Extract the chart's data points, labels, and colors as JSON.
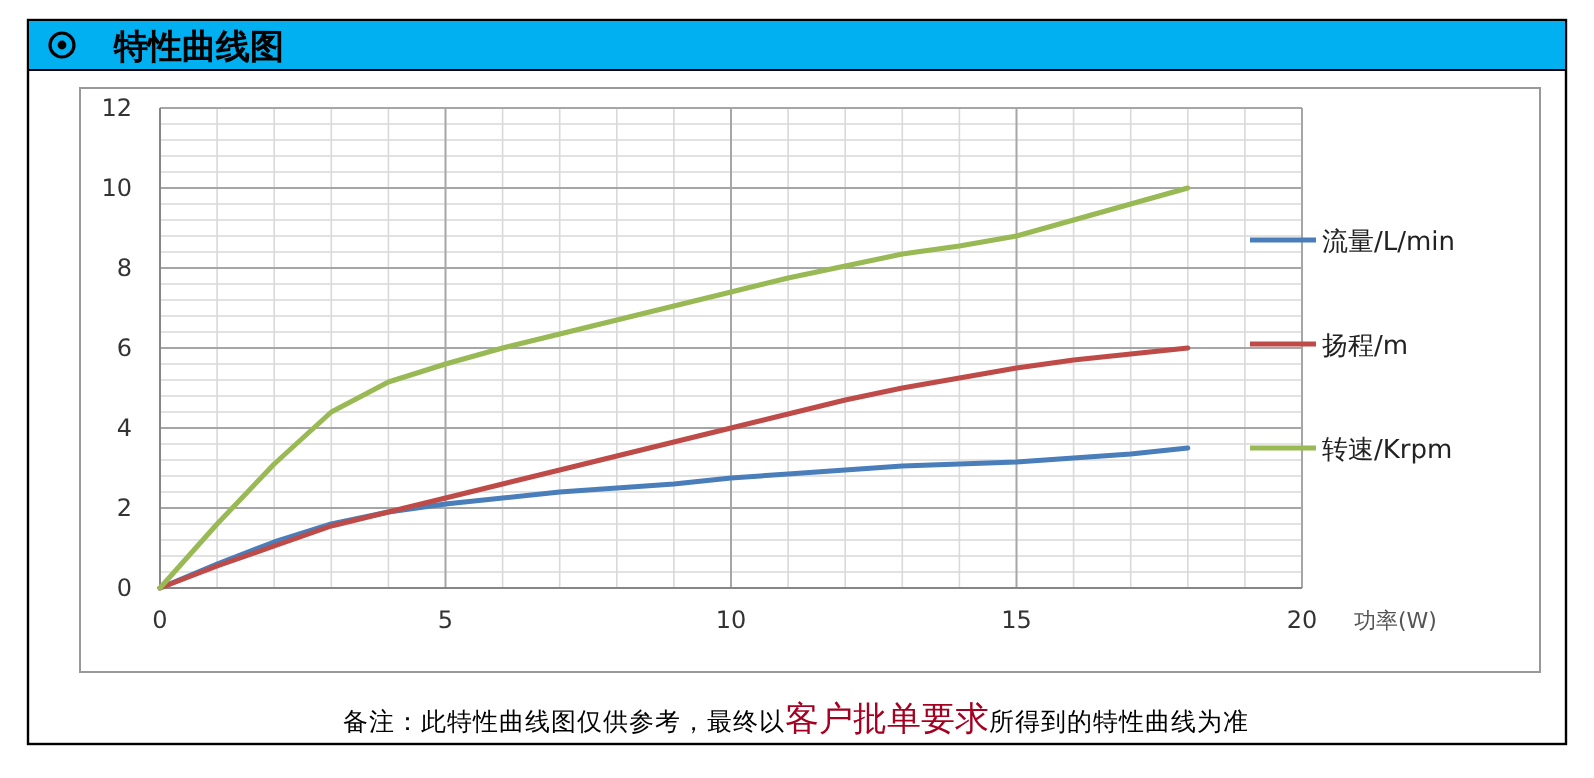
{
  "chart_data": {
    "type": "line",
    "title": "特性曲线图",
    "xlabel": "功率(W)",
    "x": [
      0,
      1,
      2,
      3,
      4,
      5,
      6,
      7,
      8,
      9,
      10,
      11,
      12,
      13,
      14,
      15,
      16,
      17,
      18
    ],
    "series": [
      {
        "name": "流量/L/min",
        "color": "#4a7ebb",
        "values": [
          0,
          0.6,
          1.15,
          1.6,
          1.9,
          2.1,
          2.25,
          2.4,
          2.5,
          2.6,
          2.75,
          2.85,
          2.95,
          3.05,
          3.1,
          3.15,
          3.25,
          3.35,
          3.5
        ]
      },
      {
        "name": "扬程/m",
        "color": "#be4b48",
        "values": [
          0,
          0.55,
          1.05,
          1.55,
          1.9,
          2.25,
          2.6,
          2.95,
          3.3,
          3.65,
          4.0,
          4.35,
          4.7,
          5.0,
          5.25,
          5.5,
          5.7,
          5.85,
          6.0
        ]
      },
      {
        "name": "转速/Krpm",
        "color": "#98b954",
        "values": [
          0,
          1.6,
          3.1,
          4.4,
          5.15,
          5.6,
          6.0,
          6.35,
          6.7,
          7.05,
          7.4,
          7.75,
          8.05,
          8.35,
          8.55,
          8.8,
          9.2,
          9.6,
          10.0
        ]
      }
    ],
    "xlim": [
      0,
      20
    ],
    "xticks": [
      0,
      5,
      10,
      15,
      20
    ],
    "ylim": [
      0,
      12
    ],
    "yticks": [
      0,
      2,
      4,
      6,
      8,
      10,
      12
    ],
    "grid": true,
    "legend": "right",
    "annotations": [
      "备注：此特性曲线图仅供参考，最终以",
      "客户批单要求",
      "所得到的特性曲线为准"
    ]
  }
}
